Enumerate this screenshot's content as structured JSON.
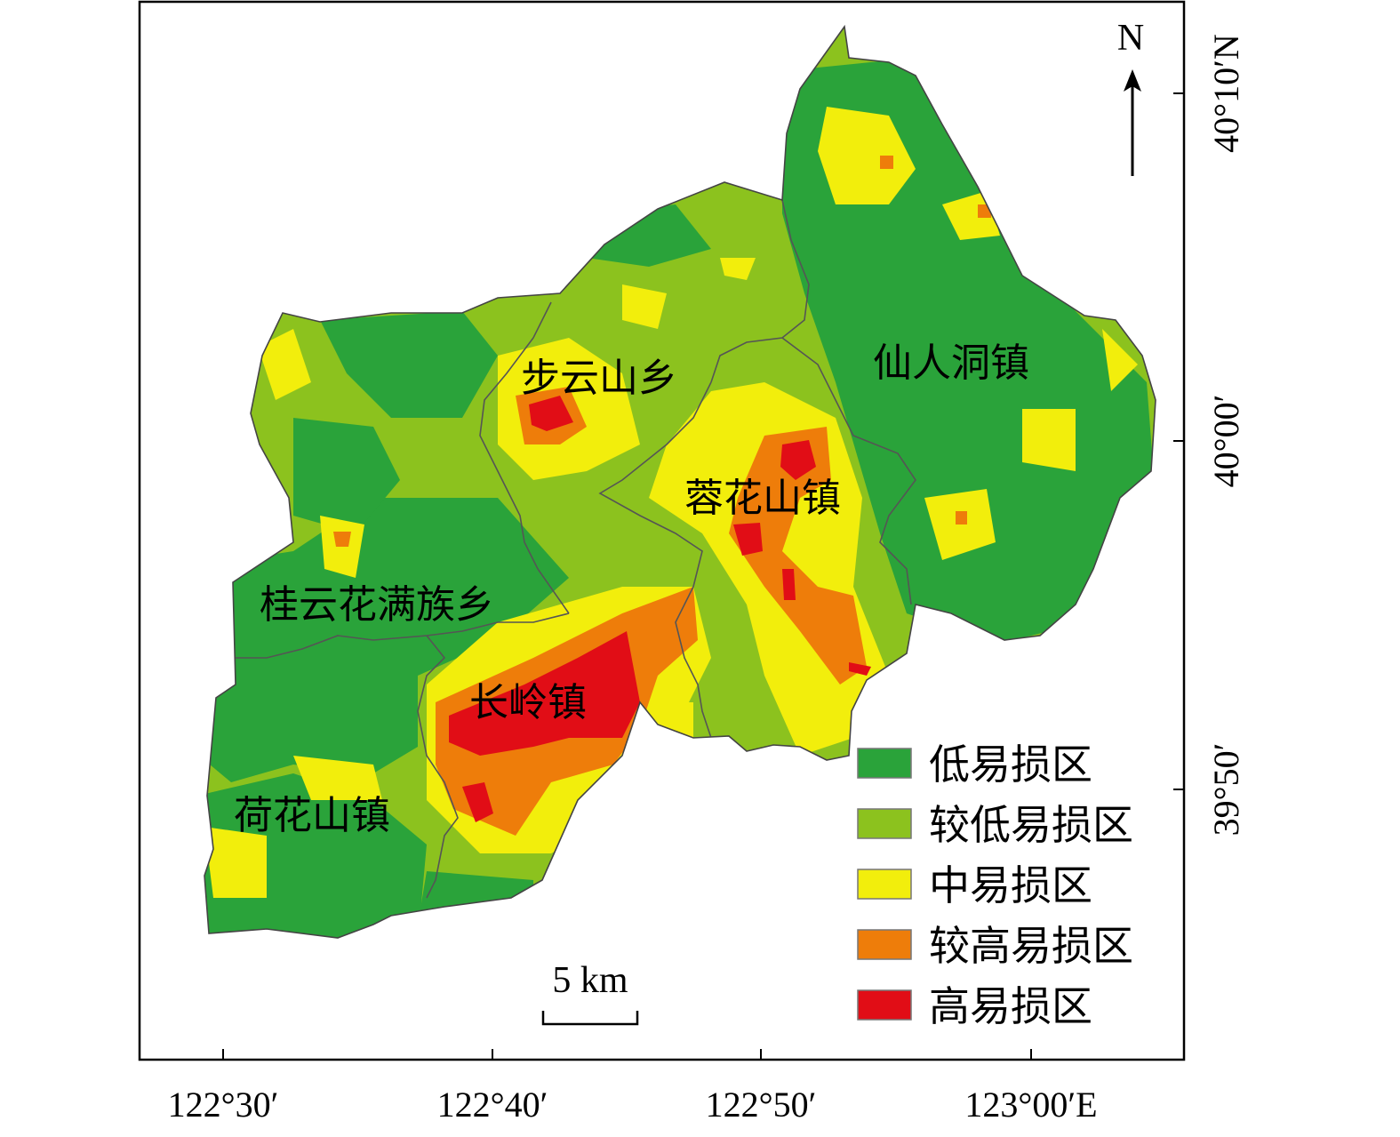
{
  "map": {
    "lon_ticks": [
      "122°30′",
      "122°40′",
      "122°50′",
      "123°00′E"
    ],
    "lat_ticks": [
      "40°10′N",
      "40°00′",
      "39°50′"
    ],
    "north_label": "N",
    "scale_label": "5 km"
  },
  "towns": [
    {
      "name": "步云山乡"
    },
    {
      "name": "仙人洞镇"
    },
    {
      "name": "蓉花山镇"
    },
    {
      "name": "桂云花满族乡"
    },
    {
      "name": "长岭镇"
    },
    {
      "name": "荷花山镇"
    }
  ],
  "legend": [
    {
      "label": "低易损区",
      "color": "#2aa33a"
    },
    {
      "label": "较低易损区",
      "color": "#8cc21e"
    },
    {
      "label": "中易损区",
      "color": "#f2ee0c"
    },
    {
      "label": "较高易损区",
      "color": "#ee7d0a"
    },
    {
      "label": "高易损区",
      "color": "#e10d16"
    }
  ]
}
